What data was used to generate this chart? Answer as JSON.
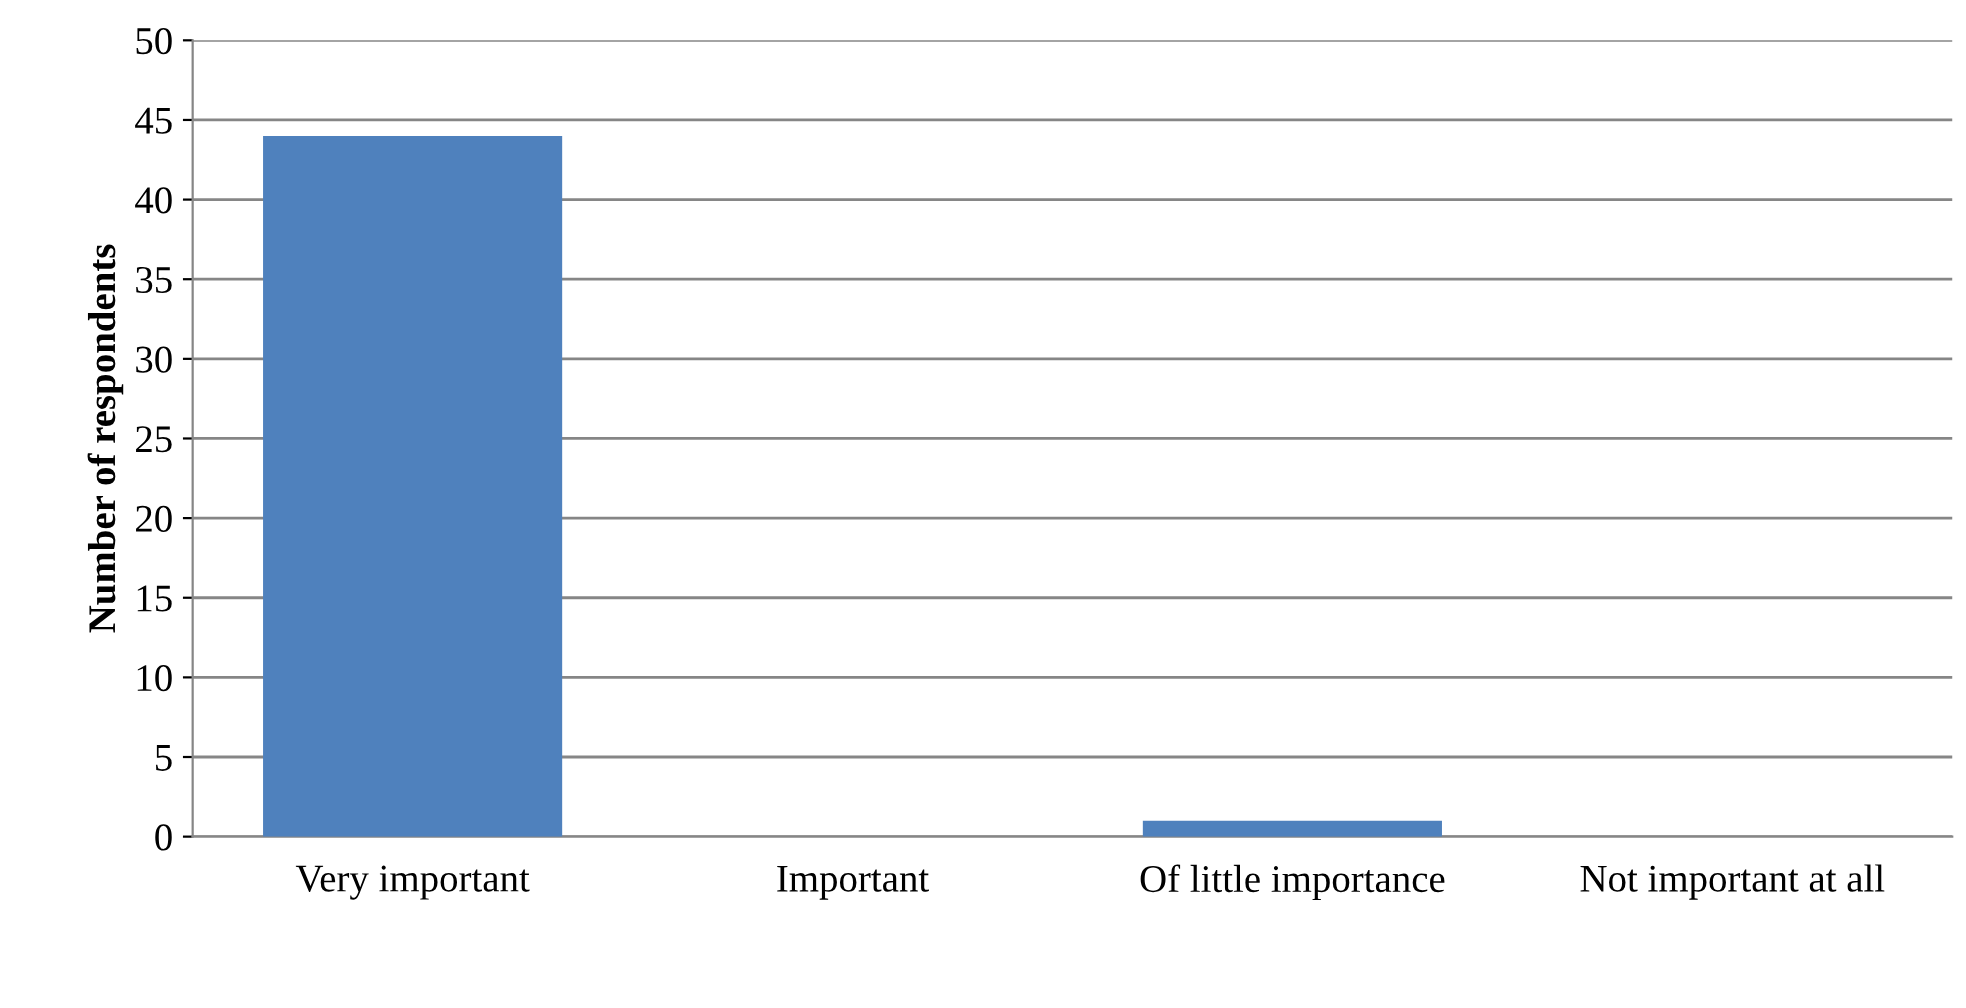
{
  "chart_data": {
    "type": "bar",
    "ylabel": "Number of respondents",
    "categories": [
      "Very important",
      "Important",
      "Of little importance",
      "Not important at all"
    ],
    "values": [
      44,
      0,
      1,
      0
    ],
    "color": "#4f81bd",
    "ylim": [
      0,
      50
    ],
    "yticks": [
      0,
      5,
      10,
      15,
      20,
      25,
      30,
      35,
      40,
      45,
      50
    ],
    "grid": "y",
    "legend": false
  }
}
